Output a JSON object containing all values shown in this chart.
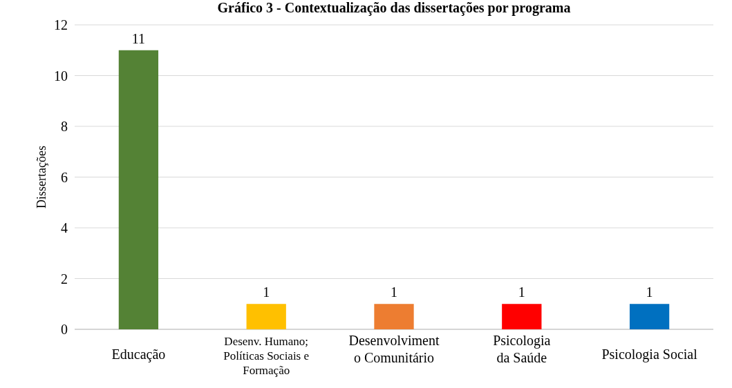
{
  "chart_data": {
    "type": "bar",
    "title": "Gráfico 3 - Contextualização das dissertações por programa",
    "ylabel": "Dissertações",
    "categories": [
      "Educação",
      "Desenv. Humano;\nPolíticas Sociais e\nFormação",
      "Desenvolviment\no Comunitário",
      "Psicologia\nda Saúde",
      "Psicologia Social"
    ],
    "values": [
      11,
      1,
      1,
      1,
      1
    ],
    "colors": [
      "#548235",
      "#ffc000",
      "#ed7d31",
      "#ff0000",
      "#0070c0"
    ],
    "ylim": [
      0,
      12
    ],
    "yticks": [
      0,
      2,
      4,
      6,
      8,
      10,
      12
    ],
    "grid": "y",
    "data_labels": true
  }
}
